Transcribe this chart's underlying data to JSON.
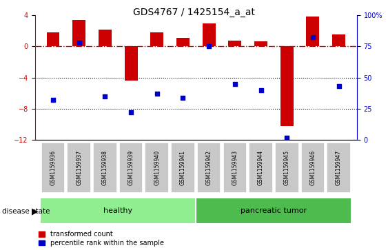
{
  "title": "GDS4767 / 1425154_a_at",
  "samples": [
    "GSM1159936",
    "GSM1159937",
    "GSM1159938",
    "GSM1159939",
    "GSM1159940",
    "GSM1159941",
    "GSM1159942",
    "GSM1159943",
    "GSM1159944",
    "GSM1159945",
    "GSM1159946",
    "GSM1159947"
  ],
  "transformed_count": [
    1.8,
    3.4,
    2.1,
    -4.4,
    1.8,
    1.1,
    2.9,
    0.7,
    0.6,
    -10.2,
    3.8,
    1.5
  ],
  "percentile_rank": [
    32,
    78,
    35,
    22,
    37,
    34,
    75,
    45,
    40,
    2,
    82,
    43
  ],
  "ylim_left": [
    -12,
    4
  ],
  "ylim_right": [
    0,
    100
  ],
  "yticks_left": [
    -12,
    -8,
    -4,
    0,
    4
  ],
  "yticks_right": [
    0,
    25,
    50,
    75,
    100
  ],
  "groups": [
    {
      "label": "healthy",
      "start": 0,
      "end": 5,
      "color": "#90ee90"
    },
    {
      "label": "pancreatic tumor",
      "start": 6,
      "end": 11,
      "color": "#4dbb4d"
    }
  ],
  "bar_color": "#cc0000",
  "dot_color": "#0000cc",
  "ref_line_color": "#cc0000",
  "grid_color": "#000000",
  "bg_color": "#ffffff",
  "tick_area_color": "#c8c8c8",
  "bar_width": 0.5,
  "dot_size": 20,
  "title_fontsize": 10,
  "axis_fontsize": 7,
  "sample_fontsize": 5.5,
  "group_fontsize": 8,
  "legend_fontsize": 7,
  "disease_fontsize": 7.5
}
